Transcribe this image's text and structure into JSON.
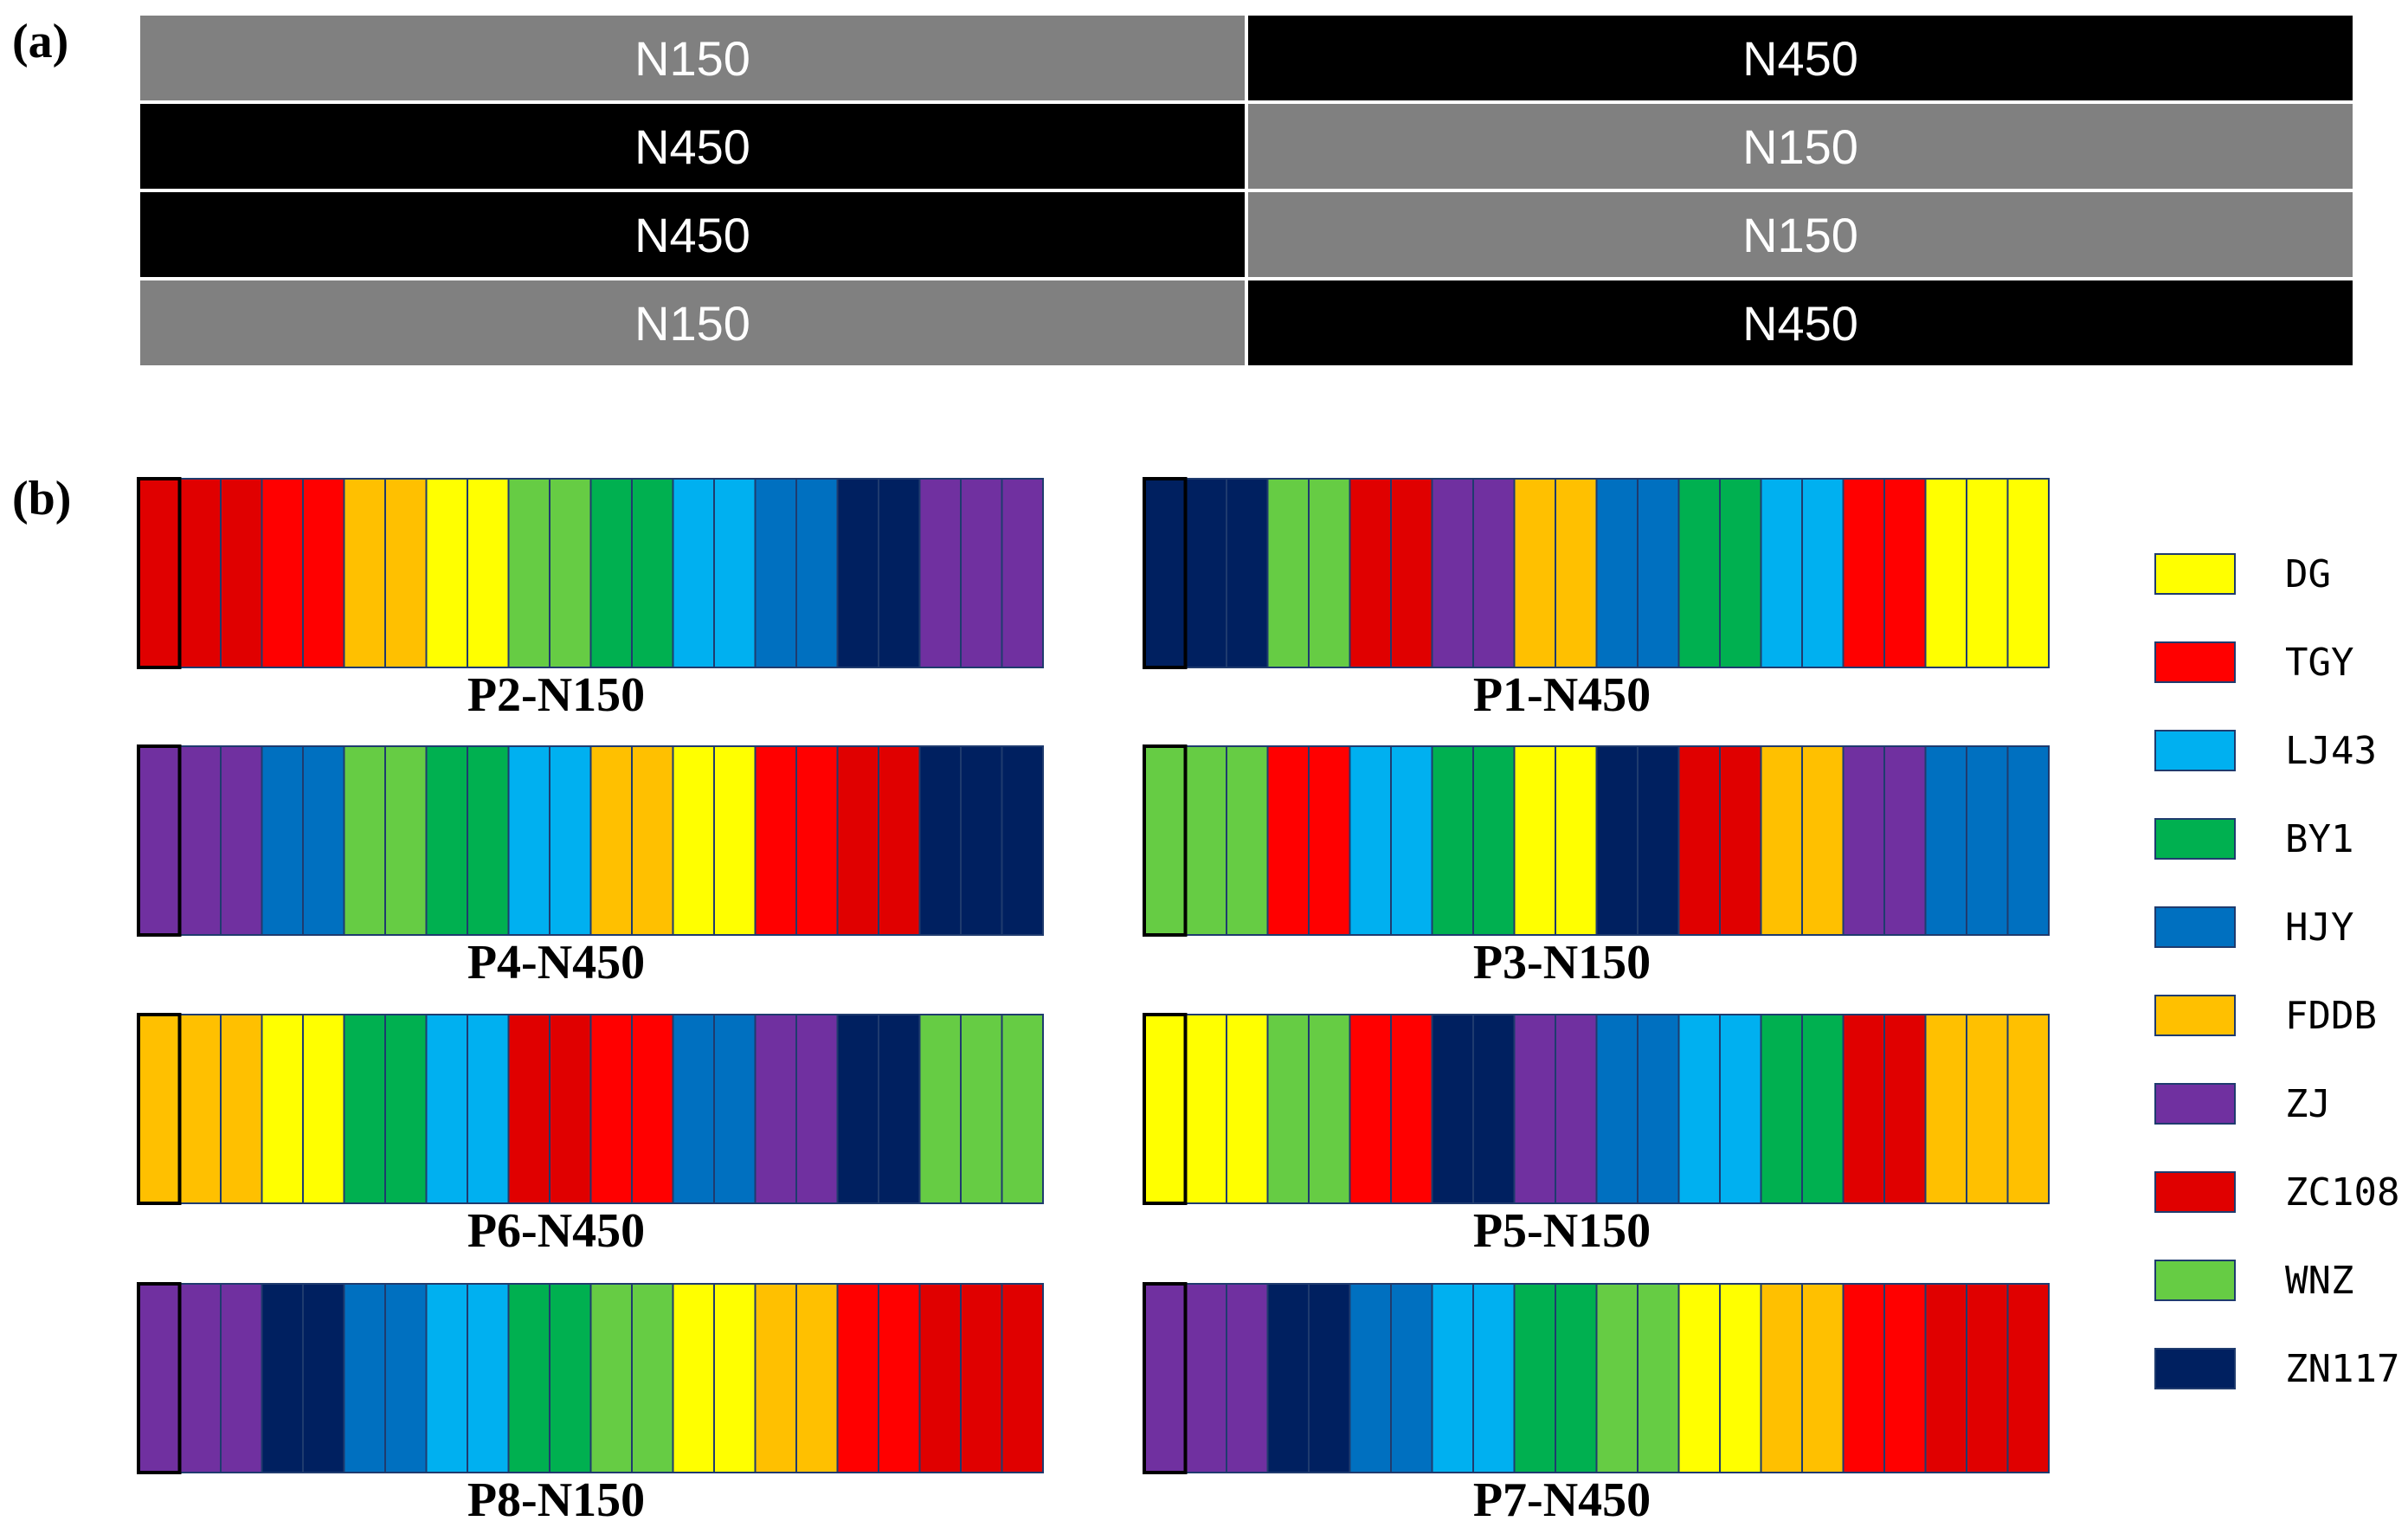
{
  "panel_a": {
    "label": "(a)",
    "rows": [
      [
        {
          "text": "N150",
          "color": "#808080"
        },
        {
          "text": "N450",
          "color": "#000000"
        }
      ],
      [
        {
          "text": "N450",
          "color": "#000000"
        },
        {
          "text": "N150",
          "color": "#808080"
        }
      ],
      [
        {
          "text": "N450",
          "color": "#000000"
        },
        {
          "text": "N150",
          "color": "#808080"
        }
      ],
      [
        {
          "text": "N150",
          "color": "#808080"
        },
        {
          "text": "N450",
          "color": "#000000"
        }
      ]
    ]
  },
  "panel_b": {
    "label": "(b)",
    "plots": [
      {
        "title": "P2-N150",
        "strips": [
          "ZC108",
          "ZC108",
          "ZC108",
          "TGY",
          "TGY",
          "FDDB",
          "FDDB",
          "DG",
          "DG",
          "WNZ",
          "WNZ",
          "BY1",
          "BY1",
          "LJ43",
          "LJ43",
          "HJY",
          "HJY",
          "ZN117",
          "ZN117",
          "ZJ",
          "ZJ",
          "ZJ"
        ]
      },
      {
        "title": "P1-N450",
        "strips": [
          "ZN117",
          "ZN117",
          "ZN117",
          "WNZ",
          "WNZ",
          "ZC108",
          "ZC108",
          "ZJ",
          "ZJ",
          "FDDB",
          "FDDB",
          "HJY",
          "HJY",
          "BY1",
          "BY1",
          "LJ43",
          "LJ43",
          "TGY",
          "TGY",
          "DG",
          "DG",
          "DG"
        ]
      },
      {
        "title": "P4-N450",
        "strips": [
          "ZJ",
          "ZJ",
          "ZJ",
          "HJY",
          "HJY",
          "WNZ",
          "WNZ",
          "BY1",
          "BY1",
          "LJ43",
          "LJ43",
          "FDDB",
          "FDDB",
          "DG",
          "DG",
          "TGY",
          "TGY",
          "ZC108",
          "ZC108",
          "ZN117",
          "ZN117",
          "ZN117"
        ]
      },
      {
        "title": "P3-N150",
        "strips": [
          "WNZ",
          "WNZ",
          "WNZ",
          "TGY",
          "TGY",
          "LJ43",
          "LJ43",
          "BY1",
          "BY1",
          "DG",
          "DG",
          "ZN117",
          "ZN117",
          "ZC108",
          "ZC108",
          "FDDB",
          "FDDB",
          "ZJ",
          "ZJ",
          "HJY",
          "HJY",
          "HJY"
        ]
      },
      {
        "title": "P6-N450",
        "strips": [
          "FDDB",
          "FDDB",
          "FDDB",
          "DG",
          "DG",
          "BY1",
          "BY1",
          "LJ43",
          "LJ43",
          "ZC108",
          "ZC108",
          "TGY",
          "TGY",
          "HJY",
          "HJY",
          "ZJ",
          "ZJ",
          "ZN117",
          "ZN117",
          "WNZ",
          "WNZ",
          "WNZ"
        ]
      },
      {
        "title": "P5-N150",
        "strips": [
          "DG",
          "DG",
          "DG",
          "WNZ",
          "WNZ",
          "TGY",
          "TGY",
          "ZN117",
          "ZN117",
          "ZJ",
          "ZJ",
          "HJY",
          "HJY",
          "LJ43",
          "LJ43",
          "BY1",
          "BY1",
          "ZC108",
          "ZC108",
          "FDDB",
          "FDDB",
          "FDDB"
        ]
      },
      {
        "title": "P8-N150",
        "strips": [
          "ZJ",
          "ZJ",
          "ZJ",
          "ZN117",
          "ZN117",
          "HJY",
          "HJY",
          "LJ43",
          "LJ43",
          "BY1",
          "BY1",
          "WNZ",
          "WNZ",
          "DG",
          "DG",
          "FDDB",
          "FDDB",
          "TGY",
          "TGY",
          "ZC108",
          "ZC108",
          "ZC108"
        ]
      },
      {
        "title": "P7-N450",
        "strips": [
          "ZJ",
          "ZJ",
          "ZJ",
          "ZN117",
          "ZN117",
          "HJY",
          "HJY",
          "LJ43",
          "LJ43",
          "BY1",
          "BY1",
          "WNZ",
          "WNZ",
          "DG",
          "DG",
          "FDDB",
          "FDDB",
          "TGY",
          "TGY",
          "ZC108",
          "ZC108",
          "ZC108"
        ]
      }
    ]
  },
  "legend": [
    {
      "label": "DG",
      "color": "#FFFF00"
    },
    {
      "label": "TGY",
      "color": "#FF0000"
    },
    {
      "label": "LJ43",
      "color": "#00B0F0"
    },
    {
      "label": "BY1",
      "color": "#00B050"
    },
    {
      "label": "HJY",
      "color": "#0070C0"
    },
    {
      "label": "FDDB",
      "color": "#FFC000"
    },
    {
      "label": "ZJ",
      "color": "#7030A0"
    },
    {
      "label": "ZC108",
      "color": "#E00000"
    },
    {
      "label": "WNZ",
      "color": "#66CC44"
    },
    {
      "label": "ZN117",
      "color": "#002060"
    }
  ]
}
